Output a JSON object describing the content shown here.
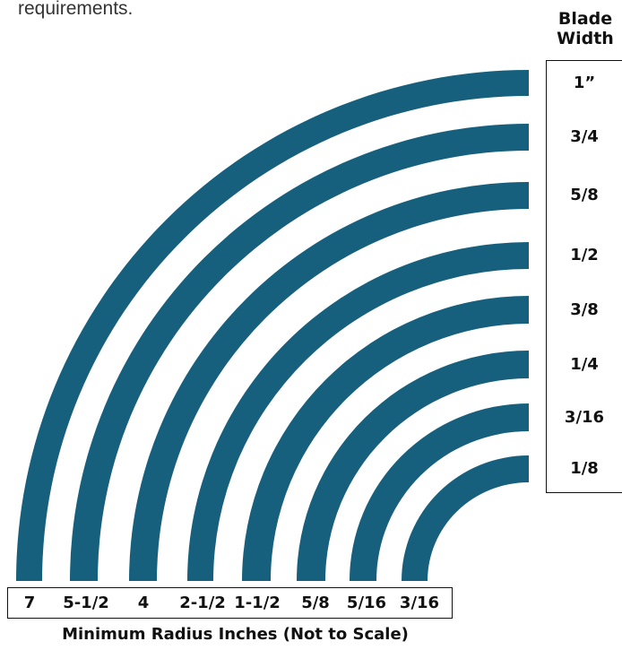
{
  "intro_text": "requirements.",
  "blade_width_header": [
    "Blade",
    "Width"
  ],
  "blade_widths": [
    "1”",
    "3/4",
    "5/8",
    "1/2",
    "3/8",
    "1/4",
    "3/16",
    "1/8"
  ],
  "min_radius_values": [
    "7",
    "5-1/2",
    "4",
    "2-1/2",
    "1-1/2",
    "5/8",
    "5/16",
    "3/16"
  ],
  "caption": "Minimum Radius Inches (Not to Scale)",
  "arc_color": "#17607d"
}
